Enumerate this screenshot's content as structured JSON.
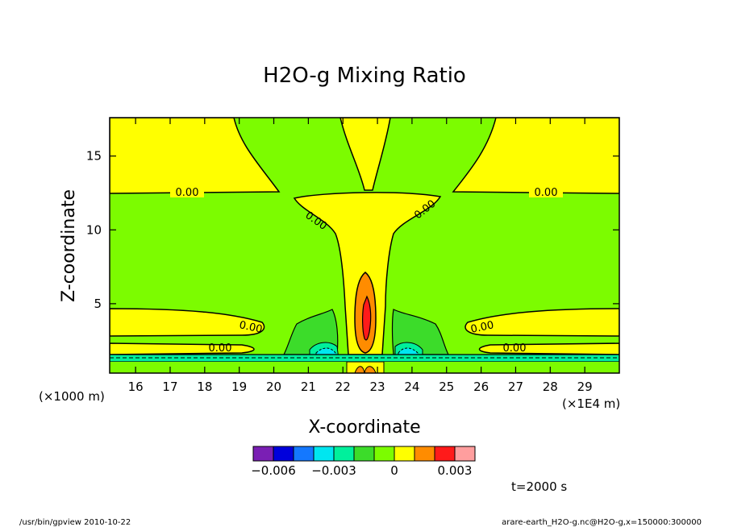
{
  "chart_data": {
    "type": "heatmap",
    "title": "H2O-g Mixing Ratio",
    "xlabel": "X-coordinate",
    "ylabel": "Z-coordinate",
    "x_units": "(×1E4 m)",
    "y_units": "(×1000 m)",
    "xlim": [
      15.25,
      30.0
    ],
    "ylim": [
      0.3,
      17.6
    ],
    "x_ticks": [
      16,
      17,
      18,
      19,
      20,
      21,
      22,
      23,
      24,
      25,
      26,
      27,
      28,
      29
    ],
    "y_ticks": [
      5,
      10,
      15
    ],
    "contour_labels": [
      "0.00",
      "0.00",
      "0.00",
      "0.00",
      "0.00",
      "0.00",
      "0.00",
      "0.00"
    ],
    "colorbar": {
      "colors": [
        "#7a1fb4",
        "#0000dc",
        "#1478ff",
        "#00e6f0",
        "#00f09c",
        "#3cdc2a",
        "#7cfc00",
        "#ffff00",
        "#ff8c00",
        "#ff1a1a",
        "#ff9e9e"
      ],
      "ticks": [
        "−0.006",
        "−0.003",
        "0",
        "0.003"
      ]
    },
    "time_label": "t=2000 s",
    "footer_left": "/usr/bin/gpview   2010-10-22",
    "footer_right": "arare-earth_H2O-g.nc@H2O-g,x=150000:300000"
  }
}
